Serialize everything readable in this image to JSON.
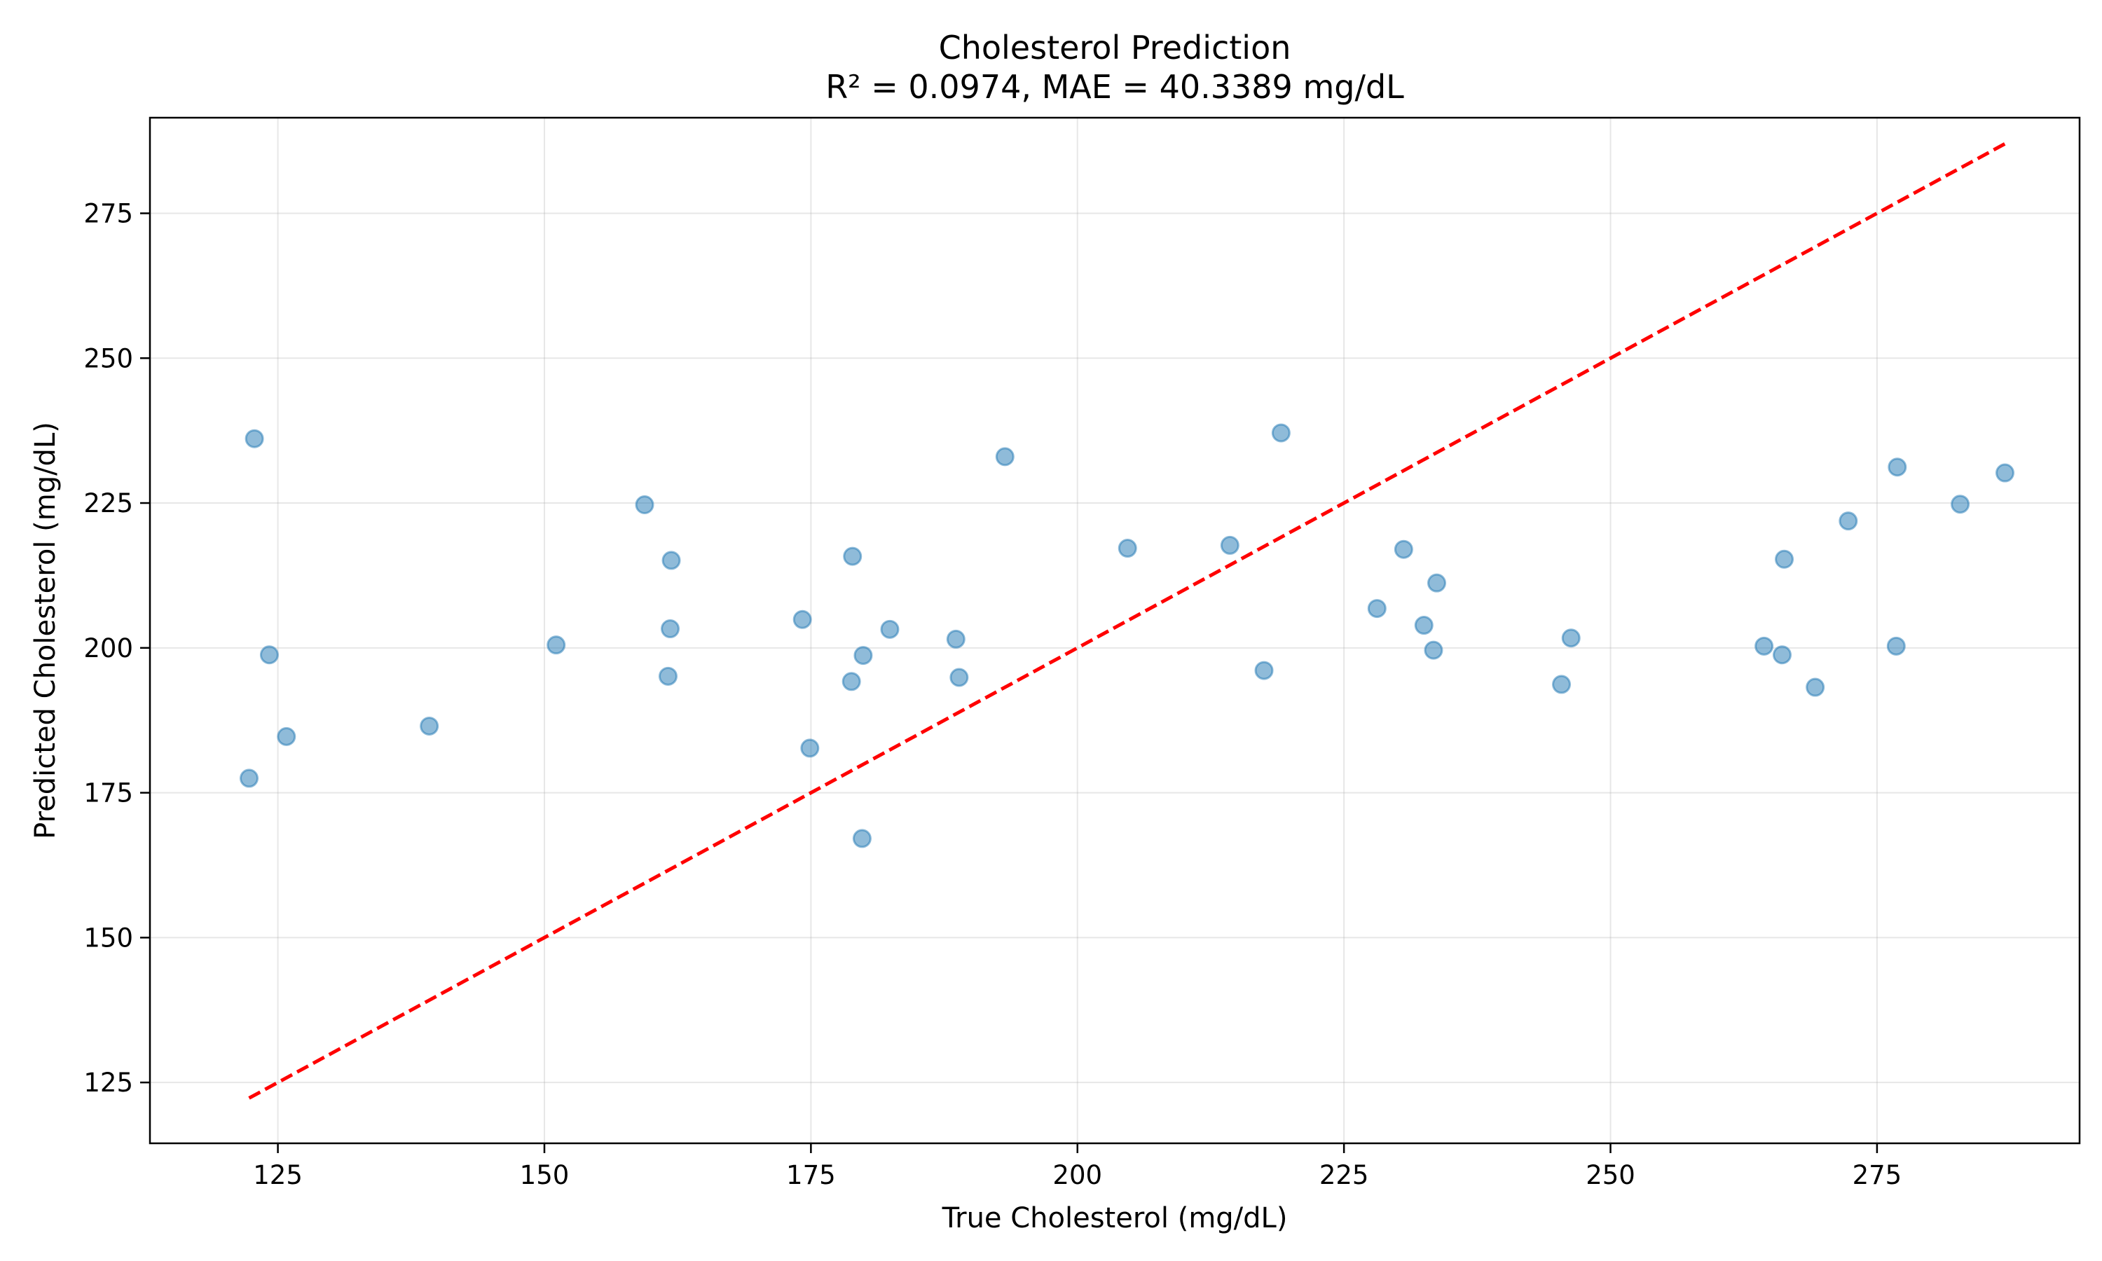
{
  "chart_data": {
    "type": "scatter",
    "title": "Cholesterol Prediction",
    "subtitle": "R² = 0.0974, MAE = 40.3389 mg/dL",
    "xlabel": "True Cholesterol (mg/dL)",
    "ylabel": "Predicted Cholesterol (mg/dL)",
    "xlim": [
      113,
      294
    ],
    "ylim": [
      114.5,
      291.5
    ],
    "xticks": [
      125,
      150,
      175,
      200,
      225,
      250,
      275
    ],
    "yticks": [
      125,
      150,
      175,
      200,
      225,
      250,
      275
    ],
    "grid": true,
    "legend": "none",
    "series": [
      {
        "kind": "points",
        "color": "#1f77b4",
        "points": [
          {
            "x": 122.3,
            "y": 177.5
          },
          {
            "x": 122.8,
            "y": 236.1
          },
          {
            "x": 124.2,
            "y": 198.8
          },
          {
            "x": 125.8,
            "y": 184.7
          },
          {
            "x": 139.2,
            "y": 186.5
          },
          {
            "x": 151.1,
            "y": 200.5
          },
          {
            "x": 159.4,
            "y": 224.7
          },
          {
            "x": 161.6,
            "y": 195.1
          },
          {
            "x": 161.8,
            "y": 203.3
          },
          {
            "x": 161.9,
            "y": 215.1
          },
          {
            "x": 174.2,
            "y": 204.9
          },
          {
            "x": 174.9,
            "y": 182.7
          },
          {
            "x": 178.8,
            "y": 194.2
          },
          {
            "x": 178.9,
            "y": 215.8
          },
          {
            "x": 179.8,
            "y": 167.1
          },
          {
            "x": 179.9,
            "y": 198.7
          },
          {
            "x": 182.4,
            "y": 203.2
          },
          {
            "x": 188.6,
            "y": 201.5
          },
          {
            "x": 188.9,
            "y": 194.9
          },
          {
            "x": 193.2,
            "y": 233.0
          },
          {
            "x": 204.7,
            "y": 217.2
          },
          {
            "x": 214.3,
            "y": 217.7
          },
          {
            "x": 217.5,
            "y": 196.1
          },
          {
            "x": 219.1,
            "y": 237.1
          },
          {
            "x": 228.1,
            "y": 206.8
          },
          {
            "x": 230.6,
            "y": 217.0
          },
          {
            "x": 232.5,
            "y": 203.9
          },
          {
            "x": 233.4,
            "y": 199.6
          },
          {
            "x": 233.7,
            "y": 211.2
          },
          {
            "x": 245.4,
            "y": 193.7
          },
          {
            "x": 246.3,
            "y": 201.7
          },
          {
            "x": 264.4,
            "y": 200.3
          },
          {
            "x": 266.1,
            "y": 198.8
          },
          {
            "x": 266.3,
            "y": 215.3
          },
          {
            "x": 269.2,
            "y": 193.2
          },
          {
            "x": 272.3,
            "y": 221.9
          },
          {
            "x": 276.8,
            "y": 200.3
          },
          {
            "x": 276.9,
            "y": 231.2
          },
          {
            "x": 282.8,
            "y": 224.8
          },
          {
            "x": 287.0,
            "y": 230.2
          }
        ]
      },
      {
        "kind": "reference-line",
        "style": "dashed",
        "color": "#ff0000",
        "points": [
          {
            "x": 122.3,
            "y": 122.3
          },
          {
            "x": 287.0,
            "y": 287.0
          }
        ]
      }
    ]
  }
}
